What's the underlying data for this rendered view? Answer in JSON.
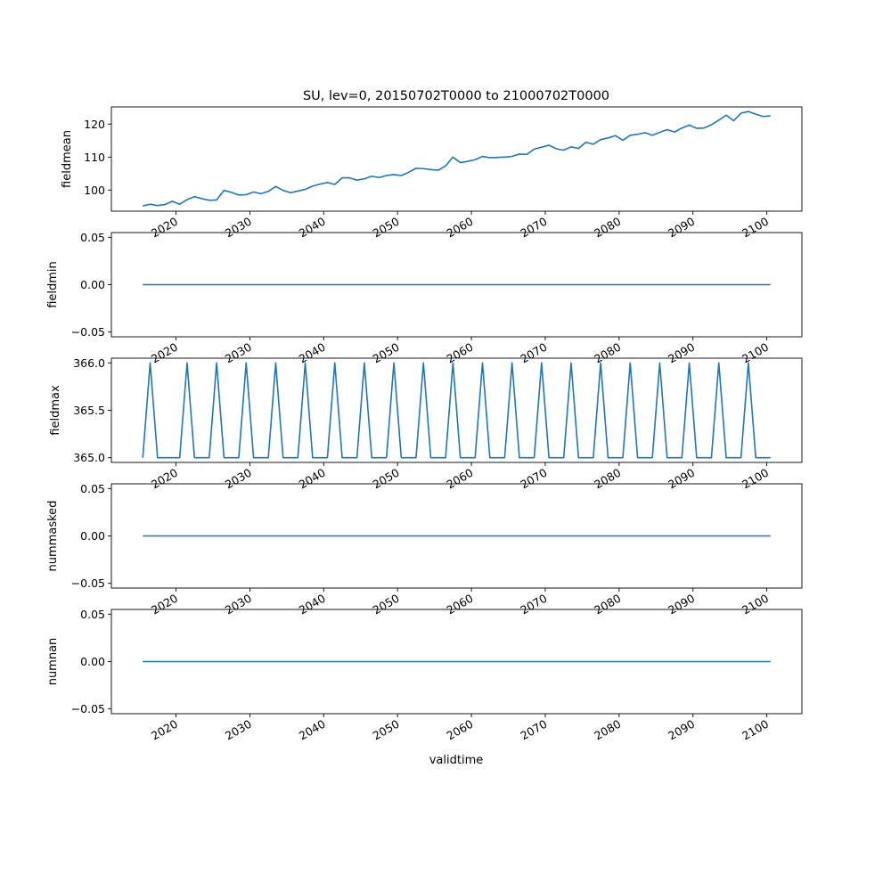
{
  "title": "SU, lev=0, 20150702T0000 to 21000702T0000",
  "xlabel": "validtime",
  "chart_data": [
    {
      "type": "line",
      "ylabel": "fieldmean",
      "x": [
        2015.5,
        2016.5,
        2017.5,
        2018.5,
        2019.5,
        2020.5,
        2021.5,
        2022.5,
        2023.5,
        2024.5,
        2025.5,
        2026.5,
        2027.5,
        2028.5,
        2029.5,
        2030.5,
        2031.5,
        2032.5,
        2033.5,
        2034.5,
        2035.5,
        2036.5,
        2037.5,
        2038.5,
        2039.5,
        2040.5,
        2041.5,
        2042.5,
        2043.5,
        2044.5,
        2045.5,
        2046.5,
        2047.5,
        2048.5,
        2049.5,
        2050.5,
        2051.5,
        2052.5,
        2053.5,
        2054.5,
        2055.5,
        2056.5,
        2057.5,
        2058.5,
        2059.5,
        2060.5,
        2061.5,
        2062.5,
        2063.5,
        2064.5,
        2065.5,
        2066.5,
        2067.5,
        2068.5,
        2069.5,
        2070.5,
        2071.5,
        2072.5,
        2073.5,
        2074.5,
        2075.5,
        2076.5,
        2077.5,
        2078.5,
        2079.5,
        2080.5,
        2081.5,
        2082.5,
        2083.5,
        2084.5,
        2085.5,
        2086.5,
        2087.5,
        2088.5,
        2089.5,
        2090.5,
        2091.5,
        2092.5,
        2093.5,
        2094.5,
        2095.5,
        2096.5,
        2097.5,
        2098.5,
        2099.5,
        2100.5
      ],
      "y": [
        95.2,
        95.7,
        95.3,
        95.6,
        96.6,
        95.7,
        97.1,
        98.0,
        97.4,
        96.9,
        97.0,
        99.9,
        99.3,
        98.5,
        98.6,
        99.4,
        98.9,
        99.6,
        101.1,
        99.9,
        99.2,
        99.7,
        100.2,
        101.2,
        101.8,
        102.3,
        101.7,
        103.7,
        103.7,
        103.0,
        103.4,
        104.2,
        103.8,
        104.4,
        104.7,
        104.4,
        105.4,
        106.6,
        106.5,
        106.2,
        106.0,
        107.3,
        110.0,
        108.3,
        108.7,
        109.2,
        110.2,
        109.8,
        109.9,
        110.0,
        110.2,
        110.9,
        110.8,
        112.4,
        113.0,
        113.6,
        112.5,
        112.1,
        113.1,
        112.6,
        114.5,
        113.9,
        115.3,
        115.8,
        116.5,
        115.1,
        116.6,
        116.9,
        117.4,
        116.6,
        117.5,
        118.3,
        117.6,
        118.8,
        119.7,
        118.7,
        118.8,
        119.8,
        121.2,
        122.7,
        121.0,
        123.3,
        123.8,
        123.0,
        122.3,
        122.5
      ],
      "yticks": [
        "100",
        "110",
        "120"
      ],
      "ylim": [
        93.6,
        125.2
      ]
    },
    {
      "type": "line",
      "ylabel": "fieldmin",
      "x": [
        2015.5,
        2100.5
      ],
      "y": [
        0.0,
        0.0
      ],
      "yticks": [
        "−0.05",
        "0.00",
        "0.05"
      ],
      "ylim": [
        -0.055,
        0.055
      ]
    },
    {
      "type": "line",
      "ylabel": "fieldmax",
      "x_start": 2015.5,
      "y": [
        365,
        366,
        365,
        365,
        365,
        365,
        366,
        365,
        365,
        365,
        366,
        365,
        365,
        365,
        366,
        365,
        365,
        365,
        366,
        365,
        365,
        365,
        366,
        365,
        365,
        365,
        366,
        365,
        365,
        365,
        366,
        365,
        365,
        365,
        366,
        365,
        365,
        365,
        366,
        365,
        365,
        365,
        366,
        365,
        365,
        365,
        366,
        365,
        365,
        365,
        366,
        365,
        365,
        365,
        366,
        365,
        365,
        365,
        366,
        365,
        365,
        365,
        366,
        365,
        365,
        365,
        366,
        365,
        365,
        365,
        366,
        365,
        365,
        365,
        366,
        365,
        365,
        365,
        366,
        365,
        365,
        365,
        366,
        365,
        365,
        365
      ],
      "yticks": [
        "365.0",
        "365.5",
        "366.0"
      ],
      "ylim": [
        364.95,
        366.05
      ]
    },
    {
      "type": "line",
      "ylabel": "nummasked",
      "x": [
        2015.5,
        2100.5
      ],
      "y": [
        0.0,
        0.0
      ],
      "yticks": [
        "−0.05",
        "0.00",
        "0.05"
      ],
      "ylim": [
        -0.055,
        0.055
      ]
    },
    {
      "type": "line",
      "ylabel": "numnan",
      "x": [
        2015.5,
        2100.5
      ],
      "y": [
        0.0,
        0.0
      ],
      "yticks": [
        "−0.05",
        "0.00",
        "0.05"
      ],
      "ylim": [
        -0.055,
        0.055
      ]
    }
  ],
  "xticks": [
    "2020",
    "2030",
    "2040",
    "2050",
    "2060",
    "2070",
    "2080",
    "2090",
    "2100"
  ],
  "xlim": [
    2011.25,
    2104.75
  ],
  "line_color": "#1f77b4"
}
